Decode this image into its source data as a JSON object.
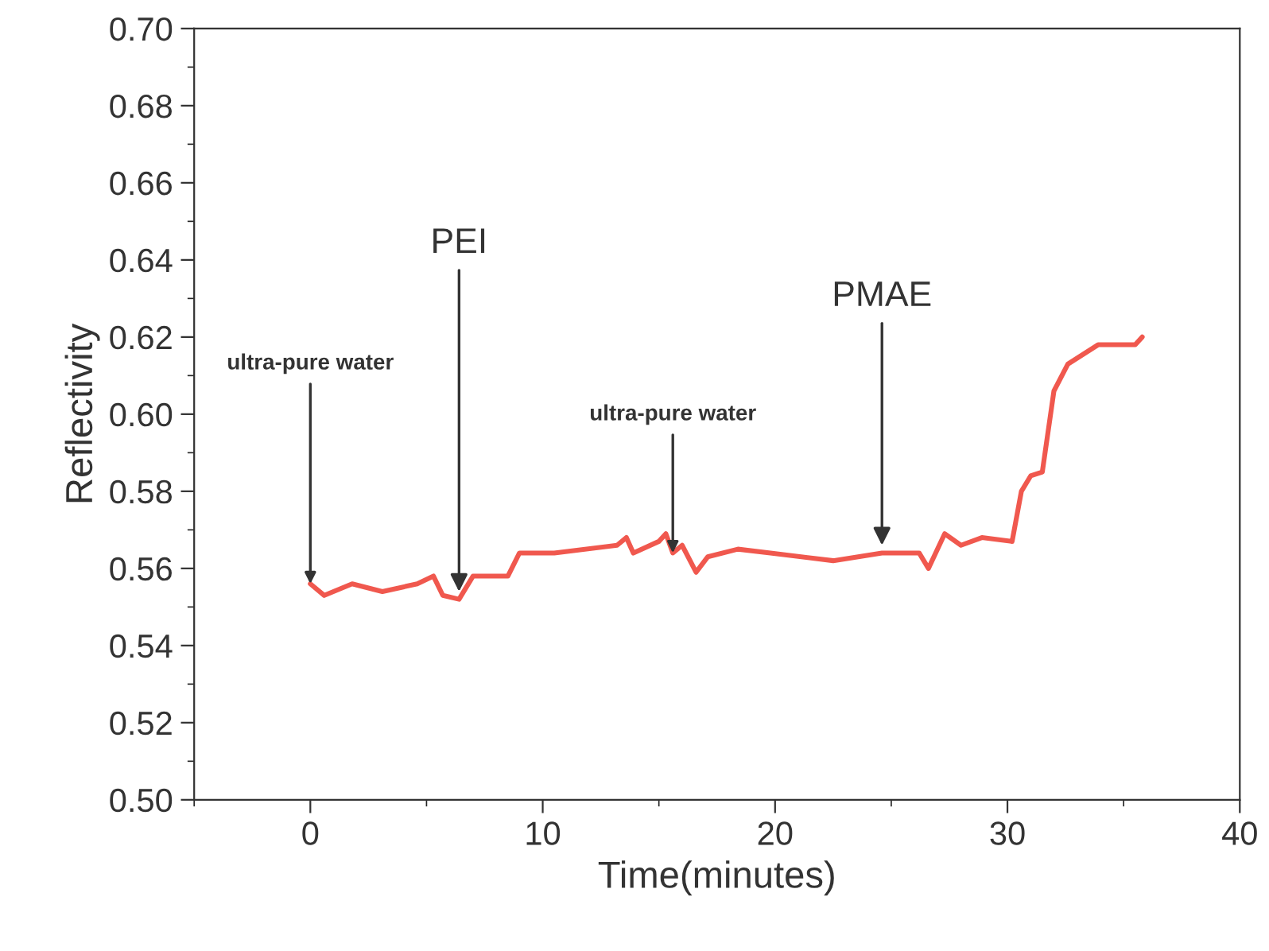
{
  "chart_data": {
    "type": "line",
    "xlabel": "Time(minutes)",
    "ylabel": "Reflectivity",
    "xlim": [
      -5,
      40
    ],
    "xticks": [
      0,
      10,
      20,
      30,
      40
    ],
    "ylim": [
      0.5,
      0.7
    ],
    "yticks": [
      {
        "value": 0.5,
        "label": "0.50"
      },
      {
        "value": 0.52,
        "label": "0.52"
      },
      {
        "value": 0.54,
        "label": "0.54"
      },
      {
        "value": 0.56,
        "label": "0.56"
      },
      {
        "value": 0.58,
        "label": "0.58"
      },
      {
        "value": 0.6,
        "label": "0.60"
      },
      {
        "value": 0.62,
        "label": "0.62"
      },
      {
        "value": 0.64,
        "label": "0.64"
      },
      {
        "value": 0.66,
        "label": "0.66"
      },
      {
        "value": 0.68,
        "label": "0.68"
      },
      {
        "value": 0.7,
        "label": "0.70"
      }
    ],
    "grid": false,
    "marker": "none",
    "line_style": "solid",
    "series": [
      {
        "color": "#f0584e",
        "x": [
          0,
          0.6,
          1.8,
          3.1,
          4.6,
          5.3,
          5.7,
          6.4,
          7.0,
          8.5,
          9.0,
          10.5,
          13.2,
          13.6,
          13.9,
          15.0,
          15.3,
          15.6,
          16.0,
          16.6,
          17.1,
          18.4,
          19.8,
          22.5,
          24.6,
          26.2,
          26.6,
          27.3,
          28.0,
          28.9,
          30.2,
          30.6,
          31.0,
          31.5,
          32.0,
          32.6,
          33.9,
          35.5,
          35.8
        ],
        "values": [
          0.556,
          0.553,
          0.556,
          0.554,
          0.556,
          0.558,
          0.553,
          0.552,
          0.558,
          0.558,
          0.564,
          0.564,
          0.566,
          0.568,
          0.564,
          0.567,
          0.569,
          0.564,
          0.566,
          0.559,
          0.563,
          0.565,
          0.564,
          0.562,
          0.564,
          0.564,
          0.56,
          0.569,
          0.566,
          0.568,
          0.567,
          0.58,
          0.584,
          0.585,
          0.606,
          0.613,
          0.618,
          0.618,
          0.62
        ]
      }
    ],
    "annotations": [
      {
        "text": "ultra-pure water",
        "x": 0,
        "y": 0.556
      },
      {
        "text": "PEI",
        "x": 6.4,
        "y": 0.554
      },
      {
        "text": "ultra-pure water",
        "x": 15.6,
        "y": 0.564
      },
      {
        "text": "PMAE",
        "x": 24.6,
        "y": 0.566
      }
    ]
  }
}
